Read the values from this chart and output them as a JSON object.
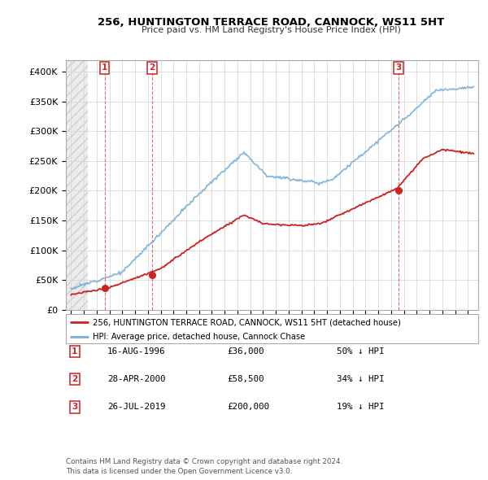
{
  "title": "256, HUNTINGTON TERRACE ROAD, CANNOCK, WS11 5HT",
  "subtitle": "Price paid vs. HM Land Registry's House Price Index (HPI)",
  "hpi_color": "#7bafd4",
  "price_color": "#cc2222",
  "purchases": [
    {
      "date_num": 1996.62,
      "price": 36000,
      "label": "1"
    },
    {
      "date_num": 2000.33,
      "price": 58500,
      "label": "2"
    },
    {
      "date_num": 2019.57,
      "price": 200000,
      "label": "3"
    }
  ],
  "legend_property": "256, HUNTINGTON TERRACE ROAD, CANNOCK, WS11 5HT (detached house)",
  "legend_hpi": "HPI: Average price, detached house, Cannock Chase",
  "footer": "Contains HM Land Registry data © Crown copyright and database right 2024.\nThis data is licensed under the Open Government Licence v3.0.",
  "table": [
    [
      "1",
      "16-AUG-1996",
      "£36,000",
      "50% ↓ HPI"
    ],
    [
      "2",
      "28-APR-2000",
      "£58,500",
      "34% ↓ HPI"
    ],
    [
      "3",
      "26-JUL-2019",
      "£200,000",
      "19% ↓ HPI"
    ]
  ],
  "ylim": [
    0,
    420000
  ],
  "xlim_left": 1993.6,
  "xlim_right": 2025.8,
  "hatch_end": 1995.3
}
